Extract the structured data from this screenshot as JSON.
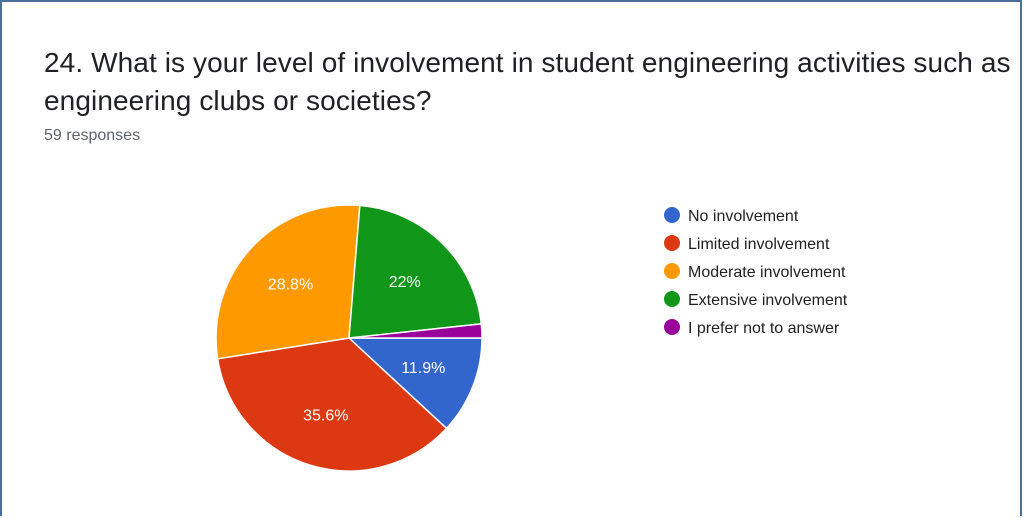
{
  "question": {
    "title": "24. What is your level of involvement in student engineering activities such as engineering clubs or societies?",
    "responses": "59 responses"
  },
  "chart_data": {
    "type": "pie",
    "title": "",
    "slices": [
      {
        "label": "No involvement",
        "value": 11.9,
        "display": "11.9%",
        "color": "#3366cc"
      },
      {
        "label": "Limited involvement",
        "value": 35.6,
        "display": "35.6%",
        "color": "#dc3912"
      },
      {
        "label": "Moderate involvement",
        "value": 28.8,
        "display": "28.8%",
        "color": "#ff9900"
      },
      {
        "label": "Extensive involvement",
        "value": 22.0,
        "display": "22%",
        "color": "#109618"
      },
      {
        "label": "I prefer not to answer",
        "value": 1.7,
        "display": "",
        "color": "#990099"
      }
    ],
    "legend_position": "right",
    "start_angle": "right, clockwise"
  }
}
